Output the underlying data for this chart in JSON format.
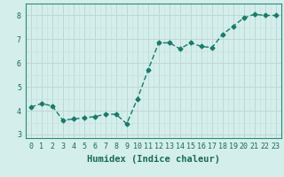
{
  "x": [
    0,
    1,
    2,
    3,
    4,
    5,
    6,
    7,
    8,
    9,
    10,
    11,
    12,
    13,
    14,
    15,
    16,
    17,
    18,
    19,
    20,
    21,
    22,
    23
  ],
  "y": [
    4.15,
    4.3,
    4.2,
    3.6,
    3.65,
    3.7,
    3.75,
    3.85,
    3.85,
    3.45,
    4.5,
    5.7,
    6.85,
    6.85,
    6.6,
    6.85,
    6.7,
    6.65,
    7.2,
    7.55,
    7.9,
    8.05,
    8.0,
    8.0
  ],
  "line_color": "#1a7a6a",
  "marker": "D",
  "marker_size": 2.5,
  "linewidth": 1.0,
  "xlabel": "Humidex (Indice chaleur)",
  "xlim": [
    -0.5,
    23.5
  ],
  "ylim": [
    2.85,
    8.5
  ],
  "yticks": [
    3,
    4,
    5,
    6,
    7,
    8
  ],
  "xticks": [
    0,
    1,
    2,
    3,
    4,
    5,
    6,
    7,
    8,
    9,
    10,
    11,
    12,
    13,
    14,
    15,
    16,
    17,
    18,
    19,
    20,
    21,
    22,
    23
  ],
  "bg_color": "#d4eeeb",
  "grid_major_color": "#c0d8d5",
  "grid_minor_color": "#c8e2df",
  "axis_color": "#2a8a7a",
  "tick_label_color": "#1a6a5a",
  "xlabel_color": "#1a6a5a",
  "xlabel_fontsize": 7.5,
  "tick_fontsize": 6.0
}
